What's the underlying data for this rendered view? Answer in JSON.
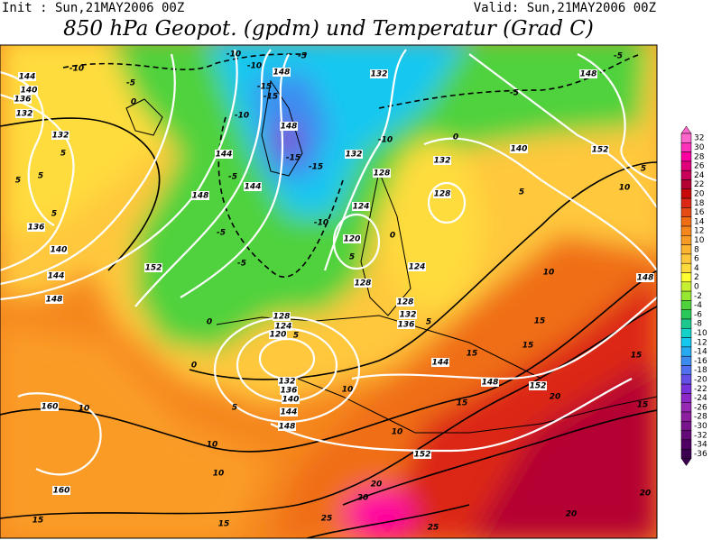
{
  "header": {
    "init": "Init : Sun,21MAY2006 00Z",
    "valid": "Valid: Sun,21MAY2006 00Z",
    "title": "850 hPa Geopot. (gpdm) und Temperatur (Grad C)"
  },
  "colorbar": {
    "levels": [
      32,
      30,
      28,
      26,
      24,
      22,
      20,
      18,
      16,
      14,
      12,
      10,
      8,
      6,
      4,
      2,
      0,
      -2,
      -4,
      -6,
      -8,
      -10,
      -12,
      -14,
      -16,
      -18,
      -20,
      -22,
      -24,
      -26,
      -28,
      -30,
      -32,
      -34,
      -36
    ],
    "colors": [
      "#ff66cc",
      "#ff33bb",
      "#ff00a0",
      "#e0007a",
      "#c8005a",
      "#b40032",
      "#c80a0a",
      "#dc2814",
      "#e64b14",
      "#f06e14",
      "#f5871e",
      "#fa9b28",
      "#ffb432",
      "#ffc83c",
      "#ffdc3c",
      "#ffff32",
      "#c8f032",
      "#96e632",
      "#50d23c",
      "#28c85a",
      "#1ec88c",
      "#14d2c8",
      "#14c8f0",
      "#28aaf0",
      "#3c8cf0",
      "#5070f0",
      "#6450e6",
      "#7832dc",
      "#8c28c8",
      "#9628b4",
      "#8c1ea0",
      "#78148c",
      "#640a78",
      "#500064",
      "#3c0050"
    ]
  },
  "map_labels": [
    "144",
    "140",
    "136",
    "132",
    "-10",
    "-5",
    "0",
    "132",
    "5",
    "5",
    "5",
    "5",
    "136",
    "140",
    "144",
    "148",
    "148",
    "-15",
    "148",
    "-15",
    "-15",
    "-10",
    "144",
    "144",
    "148",
    "-5",
    "-5",
    "-5",
    "152",
    "0",
    "0",
    "-10",
    "132",
    "-10",
    "132",
    "132",
    "128",
    "128",
    "124",
    "120",
    "5",
    "124",
    "128",
    "128",
    "124",
    "120",
    "5",
    "128",
    "132",
    "136",
    "132",
    "136",
    "140",
    "144",
    "148",
    "144",
    "148",
    "152",
    "152",
    "160",
    "10",
    "160",
    "10",
    "10",
    "5",
    "10",
    "10",
    "5",
    "15",
    "15",
    "15",
    "15",
    "20",
    "20",
    "20",
    "20",
    "25",
    "25",
    "15",
    "15",
    "-5",
    "-5",
    "148",
    "140",
    "152",
    "5",
    "10",
    "10",
    "148",
    "15",
    "15",
    "20",
    "5",
    "0",
    "0",
    "-10",
    "-10",
    "-15",
    "-5"
  ]
}
